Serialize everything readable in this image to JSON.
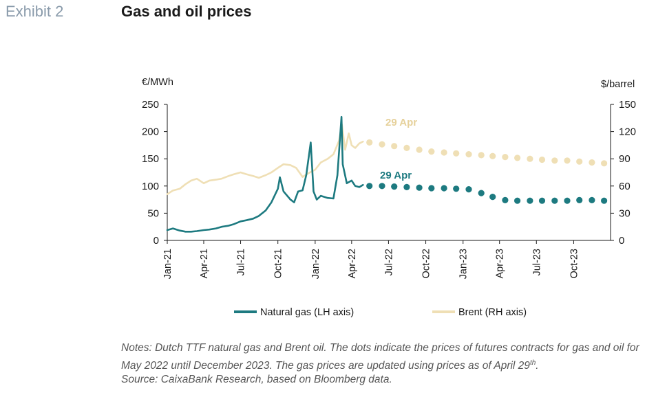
{
  "header": {
    "exhibit": "Exhibit 2",
    "title": "Gas and oil prices"
  },
  "chart_data": {
    "type": "line",
    "left_axis_unit": "€/MWh",
    "right_axis_unit": "$/barrel",
    "left_ylim": [
      0,
      250
    ],
    "right_ylim": [
      0,
      150
    ],
    "left_ticks": [
      "0",
      "50",
      "100",
      "150",
      "200",
      "250"
    ],
    "right_ticks": [
      "0",
      "30",
      "60",
      "90",
      "120",
      "150"
    ],
    "x_ticks": [
      "Jan-21",
      "Apr-21",
      "Jul-21",
      "Oct-21",
      "Jan-22",
      "Apr-22",
      "Jul-22",
      "Oct-22",
      "Jan-23",
      "Apr-23",
      "Jul-23",
      "Oct-23"
    ],
    "xlim": [
      "2021-01-01",
      "2023-12-31"
    ],
    "grid": false,
    "legend_position": "bottom",
    "annotations": {
      "brent": "29 Apr",
      "gas": "29 Apr"
    },
    "series": [
      {
        "name": "Natural gas (LH axis)",
        "axis": "left",
        "color": "#1d7a80",
        "history": [
          [
            "2021-01-01",
            19
          ],
          [
            "2021-01-15",
            22
          ],
          [
            "2021-02-01",
            18
          ],
          [
            "2021-02-15",
            16
          ],
          [
            "2021-03-01",
            16
          ],
          [
            "2021-03-15",
            17
          ],
          [
            "2021-04-01",
            19
          ],
          [
            "2021-04-15",
            20
          ],
          [
            "2021-05-01",
            22
          ],
          [
            "2021-05-15",
            25
          ],
          [
            "2021-06-01",
            27
          ],
          [
            "2021-06-15",
            30
          ],
          [
            "2021-07-01",
            35
          ],
          [
            "2021-07-15",
            37
          ],
          [
            "2021-08-01",
            40
          ],
          [
            "2021-08-15",
            45
          ],
          [
            "2021-09-01",
            55
          ],
          [
            "2021-09-15",
            70
          ],
          [
            "2021-10-01",
            95
          ],
          [
            "2021-10-06",
            116
          ],
          [
            "2021-10-15",
            90
          ],
          [
            "2021-11-01",
            75
          ],
          [
            "2021-11-10",
            70
          ],
          [
            "2021-11-20",
            90
          ],
          [
            "2021-12-01",
            92
          ],
          [
            "2021-12-10",
            120
          ],
          [
            "2021-12-21",
            180
          ],
          [
            "2021-12-28",
            90
          ],
          [
            "2022-01-05",
            75
          ],
          [
            "2022-01-15",
            82
          ],
          [
            "2022-02-01",
            78
          ],
          [
            "2022-02-15",
            77
          ],
          [
            "2022-02-25",
            120
          ],
          [
            "2022-03-07",
            227
          ],
          [
            "2022-03-10",
            140
          ],
          [
            "2022-03-20",
            105
          ],
          [
            "2022-04-01",
            110
          ],
          [
            "2022-04-10",
            100
          ],
          [
            "2022-04-20",
            98
          ],
          [
            "2022-04-29",
            102
          ]
        ],
        "futures": [
          [
            "2022-05-15",
            100
          ],
          [
            "2022-06-15",
            100
          ],
          [
            "2022-07-15",
            99
          ],
          [
            "2022-08-15",
            98
          ],
          [
            "2022-09-15",
            97
          ],
          [
            "2022-10-15",
            96
          ],
          [
            "2022-11-15",
            96
          ],
          [
            "2022-12-15",
            95
          ],
          [
            "2023-01-15",
            94
          ],
          [
            "2023-02-15",
            87
          ],
          [
            "2023-03-15",
            80
          ],
          [
            "2023-04-15",
            74
          ],
          [
            "2023-05-15",
            73
          ],
          [
            "2023-06-15",
            73
          ],
          [
            "2023-07-15",
            73
          ],
          [
            "2023-08-15",
            73
          ],
          [
            "2023-09-15",
            73
          ],
          [
            "2023-10-15",
            74
          ],
          [
            "2023-11-15",
            74
          ],
          [
            "2023-12-15",
            73
          ]
        ]
      },
      {
        "name": "Brent (RH axis)",
        "axis": "right",
        "color": "#efdfb5",
        "history": [
          [
            "2021-01-01",
            51
          ],
          [
            "2021-01-15",
            55
          ],
          [
            "2021-02-01",
            57
          ],
          [
            "2021-02-15",
            62
          ],
          [
            "2021-03-01",
            66
          ],
          [
            "2021-03-15",
            68
          ],
          [
            "2021-04-01",
            63
          ],
          [
            "2021-04-15",
            66
          ],
          [
            "2021-05-01",
            67
          ],
          [
            "2021-05-15",
            68
          ],
          [
            "2021-06-01",
            71
          ],
          [
            "2021-06-15",
            73
          ],
          [
            "2021-07-01",
            75
          ],
          [
            "2021-07-15",
            73
          ],
          [
            "2021-08-01",
            71
          ],
          [
            "2021-08-15",
            69
          ],
          [
            "2021-09-01",
            72
          ],
          [
            "2021-09-15",
            75
          ],
          [
            "2021-10-01",
            80
          ],
          [
            "2021-10-15",
            84
          ],
          [
            "2021-11-01",
            83
          ],
          [
            "2021-11-15",
            80
          ],
          [
            "2021-12-01",
            70
          ],
          [
            "2021-12-15",
            74
          ],
          [
            "2022-01-01",
            78
          ],
          [
            "2022-01-15",
            86
          ],
          [
            "2022-02-01",
            90
          ],
          [
            "2022-02-15",
            95
          ],
          [
            "2022-03-01",
            110
          ],
          [
            "2022-03-08",
            128
          ],
          [
            "2022-03-16",
            100
          ],
          [
            "2022-03-25",
            118
          ],
          [
            "2022-04-01",
            105
          ],
          [
            "2022-04-10",
            102
          ],
          [
            "2022-04-20",
            107
          ],
          [
            "2022-04-29",
            109
          ]
        ],
        "futures": [
          [
            "2022-05-15",
            108
          ],
          [
            "2022-06-15",
            106
          ],
          [
            "2022-07-15",
            104
          ],
          [
            "2022-08-15",
            102
          ],
          [
            "2022-09-15",
            100
          ],
          [
            "2022-10-15",
            98
          ],
          [
            "2022-11-15",
            97
          ],
          [
            "2022-12-15",
            96
          ],
          [
            "2023-01-15",
            95
          ],
          [
            "2023-02-15",
            94
          ],
          [
            "2023-03-15",
            93
          ],
          [
            "2023-04-15",
            92
          ],
          [
            "2023-05-15",
            91
          ],
          [
            "2023-06-15",
            90
          ],
          [
            "2023-07-15",
            89
          ],
          [
            "2023-08-15",
            88
          ],
          [
            "2023-09-15",
            88
          ],
          [
            "2023-10-15",
            87
          ],
          [
            "2023-11-15",
            86
          ],
          [
            "2023-12-15",
            85
          ]
        ]
      }
    ]
  },
  "notes": {
    "text_before_sup": "Notes: Dutch TTF natural gas and Brent oil. The dots indicate the prices of futures contracts for gas and oil for May 2022 until December 2023. The gas prices are updated using prices as of April 29",
    "sup": "th",
    "text_after_sup": ".",
    "source": "Source: CaixaBank Research, based on Bloomberg data."
  }
}
